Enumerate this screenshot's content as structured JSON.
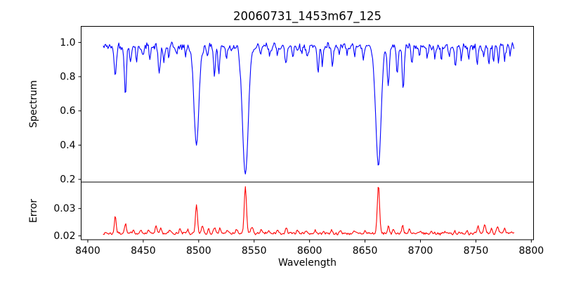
{
  "figure": {
    "title": "20060731_1453m67_125",
    "background_color": "#ffffff",
    "axes_color": "#000000"
  },
  "chart_data": [
    {
      "type": "line",
      "id": "spectrum",
      "title": "20060731_1453m67_125",
      "ylabel": "Spectrum",
      "line_color": "#0000ff",
      "grid": false,
      "legend": "none",
      "xlim": [
        8394,
        8802
      ],
      "ylim": [
        0.184,
        1.094
      ],
      "ytick_labels": [
        "0.2",
        "0.4",
        "0.6",
        "0.8",
        "1.0"
      ],
      "sampling": {
        "start": 8414,
        "end": 8785,
        "step": 0.7
      },
      "model": {
        "kind": "absorption",
        "continuum": 0.975,
        "lines": [
          [
            8424.8,
            0.8,
            0.9
          ],
          [
            8433.9,
            0.7,
            0.9
          ],
          [
            8438.5,
            0.88,
            0.7
          ],
          [
            8444.0,
            0.9,
            0.7
          ],
          [
            8450.0,
            0.91,
            0.7
          ],
          [
            8456.0,
            0.92,
            0.6
          ],
          [
            8464.5,
            0.81,
            0.9
          ],
          [
            8468.5,
            0.88,
            0.7
          ],
          [
            8473.0,
            0.91,
            0.6
          ],
          [
            8480.0,
            0.93,
            0.6
          ],
          [
            8488.0,
            0.92,
            0.6
          ],
          [
            8498.0,
            0.4,
            2.2
          ],
          [
            8508.0,
            0.93,
            0.6
          ],
          [
            8514.2,
            0.81,
            0.8
          ],
          [
            8518.2,
            0.83,
            0.8
          ],
          [
            8525.0,
            0.91,
            0.7
          ],
          [
            8542.1,
            0.23,
            2.6
          ],
          [
            8556.0,
            0.92,
            0.7
          ],
          [
            8564.0,
            0.93,
            0.6
          ],
          [
            8571.0,
            0.93,
            0.6
          ],
          [
            8578.8,
            0.87,
            0.8
          ],
          [
            8585.0,
            0.92,
            0.6
          ],
          [
            8593.0,
            0.93,
            0.6
          ],
          [
            8598.0,
            0.91,
            0.7
          ],
          [
            8607.8,
            0.83,
            0.8
          ],
          [
            8611.5,
            0.88,
            0.7
          ],
          [
            8620.5,
            0.85,
            0.8
          ],
          [
            8627.0,
            0.92,
            0.6
          ],
          [
            8634.0,
            0.93,
            0.6
          ],
          [
            8641.0,
            0.92,
            0.6
          ],
          [
            8648.5,
            0.9,
            0.7
          ],
          [
            8662.1,
            0.28,
            2.4
          ],
          [
            8671.0,
            0.75,
            0.9
          ],
          [
            8679.0,
            0.82,
            0.8
          ],
          [
            8684.4,
            0.73,
            0.9
          ],
          [
            8692.5,
            0.88,
            0.7
          ],
          [
            8699.0,
            0.92,
            0.6
          ],
          [
            8706.0,
            0.91,
            0.6
          ],
          [
            8713.0,
            0.9,
            0.7
          ],
          [
            8719.0,
            0.91,
            0.6
          ],
          [
            8726.0,
            0.9,
            0.6
          ],
          [
            8731.5,
            0.86,
            0.7
          ],
          [
            8737.0,
            0.9,
            0.6
          ],
          [
            8743.5,
            0.91,
            0.6
          ],
          [
            8751.3,
            0.87,
            0.7
          ],
          [
            8757.0,
            0.91,
            0.6
          ],
          [
            8761.7,
            0.86,
            0.7
          ],
          [
            8766.0,
            0.9,
            0.6
          ],
          [
            8770.5,
            0.87,
            0.7
          ],
          [
            8776.0,
            0.9,
            0.6
          ],
          [
            8781.0,
            0.93,
            0.6
          ]
        ]
      },
      "noise": {
        "seed": 42,
        "jitter": 0.016,
        "wiggle": 0.012,
        "freq1": 1.7,
        "freq2": 0.53,
        "suppress_in_deep_lines": true
      }
    },
    {
      "type": "line",
      "id": "error",
      "ylabel": "Error",
      "xlabel": "Wavelength",
      "line_color": "#ff0000",
      "grid": false,
      "legend": "none",
      "xlim": [
        8394,
        8802
      ],
      "ylim": [
        0.0186,
        0.0397
      ],
      "ytick_labels": [
        "0.02",
        "0.03"
      ],
      "xtick_labels": [
        "8400",
        "8450",
        "8500",
        "8550",
        "8600",
        "8650",
        "8700",
        "8750",
        "8800"
      ],
      "sampling": {
        "start": 8414,
        "end": 8785,
        "step": 0.7
      },
      "model": {
        "kind": "emission",
        "baseline": 0.0209,
        "peaks": [
          [
            8424.8,
            0.0275,
            0.8
          ],
          [
            8433.9,
            0.0247,
            0.8
          ],
          [
            8441.0,
            0.0224,
            0.7
          ],
          [
            8448.0,
            0.0222,
            0.7
          ],
          [
            8455.0,
            0.0225,
            0.7
          ],
          [
            8461.5,
            0.0235,
            0.8
          ],
          [
            8466.0,
            0.0227,
            0.7
          ],
          [
            8474.0,
            0.0222,
            0.7
          ],
          [
            8483.0,
            0.0226,
            0.8
          ],
          [
            8490.0,
            0.0222,
            0.7
          ],
          [
            8498.0,
            0.0311,
            0.9
          ],
          [
            8503.5,
            0.024,
            0.8
          ],
          [
            8509.0,
            0.0228,
            0.7
          ],
          [
            8514.5,
            0.0235,
            0.8
          ],
          [
            8519.0,
            0.0229,
            0.7
          ],
          [
            8526.0,
            0.0224,
            0.7
          ],
          [
            8534.0,
            0.0222,
            0.8
          ],
          [
            8542.1,
            0.038,
            1.0
          ],
          [
            8548.0,
            0.0232,
            1.0
          ],
          [
            8556.0,
            0.0222,
            0.8
          ],
          [
            8563.0,
            0.022,
            0.7
          ],
          [
            8571.0,
            0.0221,
            0.7
          ],
          [
            8579.0,
            0.0228,
            0.8
          ],
          [
            8589.0,
            0.0226,
            0.7
          ],
          [
            8597.0,
            0.0221,
            0.7
          ],
          [
            8605.0,
            0.0219,
            0.7
          ],
          [
            8613.0,
            0.0218,
            0.7
          ],
          [
            8620.0,
            0.022,
            0.8
          ],
          [
            8628.0,
            0.0218,
            0.7
          ],
          [
            8640.0,
            0.0217,
            0.8
          ],
          [
            8650.0,
            0.0219,
            0.7
          ],
          [
            8662.1,
            0.0387,
            1.0
          ],
          [
            8671.0,
            0.0235,
            0.8
          ],
          [
            8675.5,
            0.0226,
            0.7
          ],
          [
            8684.0,
            0.024,
            0.8
          ],
          [
            8690.0,
            0.0222,
            0.7
          ],
          [
            8700.0,
            0.0216,
            0.7
          ],
          [
            8710.0,
            0.0217,
            0.7
          ],
          [
            8722.0,
            0.0216,
            0.7
          ],
          [
            8731.0,
            0.0218,
            0.7
          ],
          [
            8742.0,
            0.0221,
            0.7
          ],
          [
            8752.0,
            0.0235,
            0.8
          ],
          [
            8758.0,
            0.0244,
            0.8
          ],
          [
            8764.0,
            0.0228,
            0.7
          ],
          [
            8769.5,
            0.0238,
            0.9
          ],
          [
            8776.0,
            0.0226,
            0.8
          ],
          [
            8782.0,
            0.0214,
            0.7
          ]
        ]
      },
      "noise": {
        "seed": 7,
        "jitter": 0.00035,
        "wiggle": 0.00025,
        "freq1": 1.7,
        "freq2": 0.53,
        "suppress_in_deep_lines": false
      }
    }
  ]
}
